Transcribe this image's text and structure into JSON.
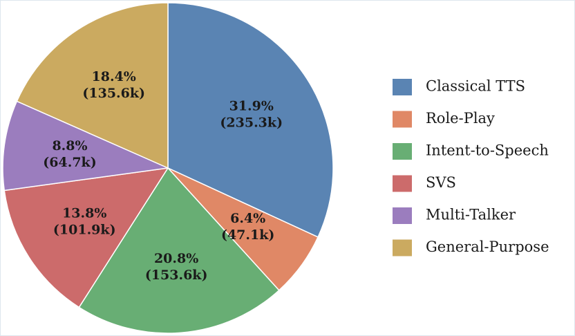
{
  "chart_data": {
    "type": "pie",
    "start_angle_deg": 90,
    "direction": "clockwise",
    "legend_position": "right",
    "slices": [
      {
        "name": "Classical TTS",
        "percent": 31.9,
        "percent_label": "31.9%",
        "value_label": "(235.3k)",
        "value_k": 235.3,
        "color": "#5a84b3"
      },
      {
        "name": "Role-Play",
        "percent": 6.4,
        "percent_label": "6.4%",
        "value_label": "(47.1k)",
        "value_k": 47.1,
        "color": "#e08866"
      },
      {
        "name": "Intent-to-Speech",
        "percent": 20.8,
        "percent_label": "20.8%",
        "value_label": "(153.6k)",
        "value_k": 153.6,
        "color": "#68ae74"
      },
      {
        "name": "SVS",
        "percent": 13.8,
        "percent_label": "13.8%",
        "value_label": "(101.9k)",
        "value_k": 101.9,
        "color": "#cc6b6b"
      },
      {
        "name": "Multi-Talker",
        "percent": 8.8,
        "percent_label": "8.8%",
        "value_label": "(64.7k)",
        "value_k": 64.7,
        "color": "#9b7dbe"
      },
      {
        "name": "General-Purpose",
        "percent": 18.4,
        "percent_label": "18.4%",
        "value_label": "(135.6k)",
        "value_k": 135.6,
        "color": "#cbaa60"
      }
    ]
  }
}
